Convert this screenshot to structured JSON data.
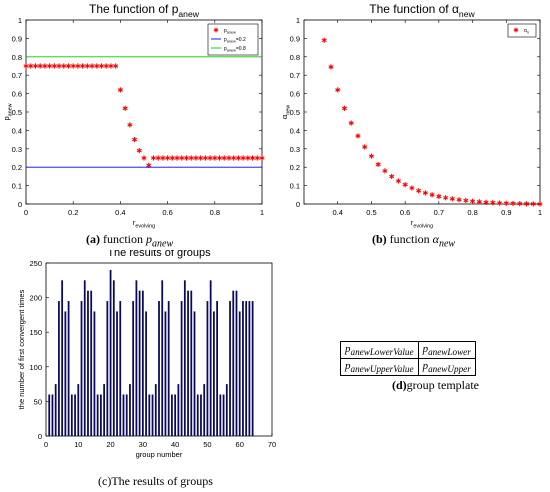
{
  "chart_data": [
    {
      "id": "a",
      "type": "scatter",
      "title": "The function of p",
      "title_sub": "anew",
      "xlabel": "r",
      "xlabel_sub": "evolving",
      "ylabel": "p",
      "ylabel_sub": "anew",
      "xlim": [
        0,
        1
      ],
      "ylim": [
        0,
        1
      ],
      "xticks": [
        "0",
        "0.2",
        "0.4",
        "0.6",
        "0.8",
        "1"
      ],
      "yticks": [
        "0",
        "0.1",
        "0.2",
        "0.3",
        "0.4",
        "0.5",
        "0.6",
        "0.7",
        "0.8",
        "0.9",
        "1"
      ],
      "legend_position": "top-right",
      "series": [
        {
          "name": "p",
          "name_sub": "anew",
          "kind": "markers",
          "color": "#ff0000",
          "x": [
            0,
            0.02,
            0.04,
            0.06,
            0.08,
            0.1,
            0.12,
            0.14,
            0.16,
            0.18,
            0.2,
            0.22,
            0.24,
            0.26,
            0.28,
            0.3,
            0.32,
            0.34,
            0.36,
            0.38,
            0.4,
            0.42,
            0.44,
            0.46,
            0.48,
            0.5,
            0.52,
            0.54,
            0.56,
            0.58,
            0.6,
            0.62,
            0.64,
            0.66,
            0.68,
            0.7,
            0.72,
            0.74,
            0.76,
            0.78,
            0.8,
            0.82,
            0.84,
            0.86,
            0.88,
            0.9,
            0.92,
            0.94,
            0.96,
            0.98,
            1
          ],
          "y": [
            0.75,
            0.75,
            0.75,
            0.75,
            0.75,
            0.75,
            0.75,
            0.75,
            0.75,
            0.75,
            0.75,
            0.75,
            0.75,
            0.75,
            0.75,
            0.75,
            0.75,
            0.75,
            0.75,
            0.75,
            0.62,
            0.52,
            0.43,
            0.35,
            0.29,
            0.25,
            0.21,
            0.25,
            0.25,
            0.25,
            0.25,
            0.25,
            0.25,
            0.25,
            0.25,
            0.25,
            0.25,
            0.25,
            0.25,
            0.25,
            0.25,
            0.25,
            0.25,
            0.25,
            0.25,
            0.25,
            0.25,
            0.25,
            0.25,
            0.25,
            0.25
          ]
        },
        {
          "name": "p",
          "name_sub": "anew",
          "name_suffix": "=0.2",
          "kind": "hline",
          "color": "#0000ff",
          "y": 0.2
        },
        {
          "name": "p",
          "name_sub": "anew",
          "name_suffix": "=0.8",
          "kind": "hline",
          "color": "#00cc00",
          "y": 0.8
        }
      ]
    },
    {
      "id": "b",
      "type": "scatter",
      "title": "The function of α",
      "title_sub": "new",
      "xlabel": "r",
      "xlabel_sub": "evolving",
      "ylabel": "α",
      "ylabel_sub": "new",
      "xlim": [
        0.3,
        1
      ],
      "ylim": [
        0,
        1
      ],
      "xticks": [
        "0.4",
        "0.5",
        "0.6",
        "0.7",
        "0.8",
        "0.9",
        "1"
      ],
      "yticks": [
        "0",
        "0.1",
        "0.2",
        "0.3",
        "0.4",
        "0.5",
        "0.6",
        "0.7",
        "0.8",
        "0.9",
        "1"
      ],
      "legend_position": "top-right",
      "series": [
        {
          "name": "α",
          "name_sub": "n",
          "kind": "markers",
          "color": "#ff0000",
          "x": [
            0.36,
            0.38,
            0.4,
            0.42,
            0.44,
            0.46,
            0.48,
            0.5,
            0.52,
            0.54,
            0.56,
            0.58,
            0.6,
            0.62,
            0.64,
            0.66,
            0.68,
            0.7,
            0.72,
            0.74,
            0.76,
            0.78,
            0.8,
            0.82,
            0.84,
            0.86,
            0.88,
            0.9,
            0.92,
            0.94,
            0.96,
            0.98,
            1
          ],
          "y": [
            0.89,
            0.745,
            0.62,
            0.52,
            0.44,
            0.37,
            0.31,
            0.26,
            0.215,
            0.18,
            0.15,
            0.125,
            0.105,
            0.087,
            0.072,
            0.06,
            0.05,
            0.041,
            0.034,
            0.028,
            0.023,
            0.019,
            0.015,
            0.012,
            0.009,
            0.007,
            0.005,
            0.004,
            0.003,
            0.002,
            0.001,
            0.0005,
            0
          ]
        }
      ]
    },
    {
      "id": "c",
      "type": "bar",
      "title": "The results of groups",
      "xlabel": "group number",
      "ylabel": "the number of first convergent times",
      "xlim": [
        0,
        70
      ],
      "ylim": [
        0,
        250
      ],
      "xticks": [
        "0",
        "10",
        "20",
        "30",
        "40",
        "50",
        "60",
        "70"
      ],
      "yticks": [
        "0",
        "50",
        "100",
        "150",
        "200",
        "250"
      ],
      "bar_color": "#0a0a5a",
      "x": [
        1,
        2,
        3,
        4,
        5,
        6,
        7,
        8,
        9,
        10,
        11,
        12,
        13,
        14,
        15,
        16,
        17,
        18,
        19,
        20,
        21,
        22,
        23,
        24,
        25,
        26,
        27,
        28,
        29,
        30,
        31,
        32,
        33,
        34,
        35,
        36,
        37,
        38,
        39,
        40,
        41,
        42,
        43,
        44,
        45,
        46,
        47,
        48,
        49,
        50,
        51,
        52,
        53,
        54,
        55,
        56,
        57,
        58,
        59,
        60,
        61,
        62,
        63,
        64
      ],
      "values": [
        60,
        60,
        75,
        195,
        225,
        180,
        195,
        60,
        60,
        75,
        195,
        225,
        210,
        210,
        180,
        60,
        60,
        75,
        195,
        240,
        225,
        180,
        195,
        60,
        60,
        75,
        195,
        225,
        210,
        210,
        180,
        60,
        60,
        75,
        195,
        225,
        180,
        195,
        60,
        60,
        75,
        195,
        225,
        210,
        210,
        180,
        60,
        60,
        75,
        195,
        225,
        180,
        195,
        60,
        60,
        75,
        195,
        210,
        210,
        180,
        195,
        195,
        195,
        195
      ]
    }
  ],
  "captions": {
    "a": {
      "label": "(a)",
      "text": " function ",
      "math": "p",
      "math_sub": "anew"
    },
    "b": {
      "label": "(b)",
      "text": " function ",
      "math": "α",
      "math_sub": "new"
    },
    "c": {
      "label": "(c)",
      "text": "The results of groups"
    },
    "d": {
      "label": "(d)",
      "text": "group template"
    }
  },
  "template_table": {
    "rows": [
      [
        {
          "base": "p",
          "sub": "anewLowerValue"
        },
        {
          "base": "p",
          "sub": "anewLower"
        }
      ],
      [
        {
          "base": "p",
          "sub": "anewUpperValue"
        },
        {
          "base": "p",
          "sub": "anewUpper"
        }
      ]
    ]
  }
}
